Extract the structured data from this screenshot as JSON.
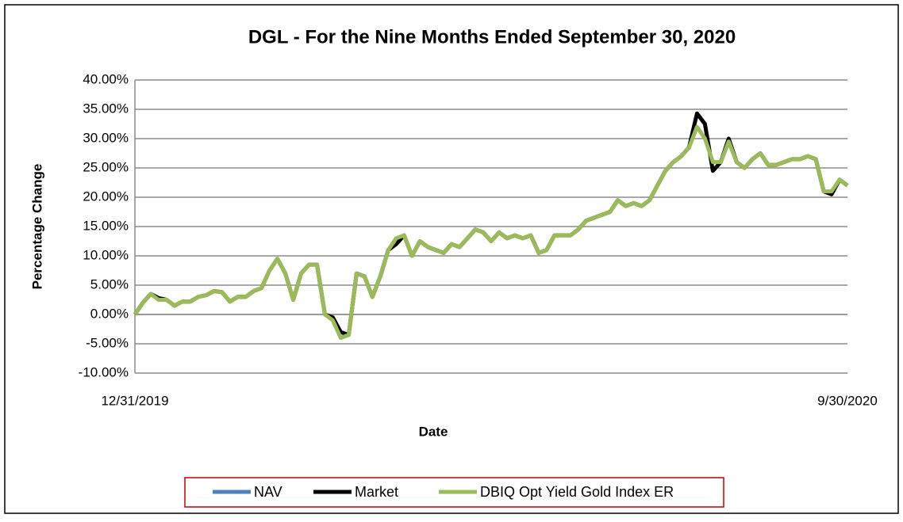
{
  "chart_data": {
    "type": "line",
    "title": "DGL - For the Nine Months Ended September 30, 2020",
    "xlabel": "Date",
    "ylabel": "Percentage Change",
    "categories": [
      "12/31/2019",
      null,
      null,
      null,
      null,
      null,
      null,
      null,
      null,
      null,
      null,
      null,
      null,
      null,
      null,
      null,
      null,
      null,
      null,
      null,
      null,
      null,
      null,
      null,
      null,
      null,
      null,
      null,
      null,
      null,
      null,
      null,
      null,
      null,
      null,
      null,
      null,
      null,
      null,
      null,
      null,
      null,
      null,
      null,
      null,
      null,
      null,
      null,
      null,
      null,
      null,
      null,
      null,
      null,
      null,
      null,
      null,
      null,
      null,
      null,
      null,
      null,
      null,
      null,
      null,
      null,
      null,
      null,
      null,
      null,
      null,
      null,
      null,
      null,
      null,
      null,
      null,
      null,
      null,
      null,
      null,
      null,
      null,
      null,
      null,
      null,
      null,
      null,
      null,
      null,
      "9/30/2020"
    ],
    "series": [
      {
        "name": "NAV",
        "color": "#4f81bd",
        "values": [
          0,
          2,
          3.5,
          2.8,
          2.5,
          1.5,
          2.2,
          2.2,
          3,
          3.3,
          4,
          3.8,
          2.2,
          3,
          3,
          4,
          4.5,
          7.5,
          9.5,
          7,
          2.5,
          7,
          8.5,
          8.5,
          0,
          -0.5,
          -3,
          -3.5,
          7,
          6.5,
          3,
          6.5,
          11,
          13,
          13.5,
          10,
          12.5,
          11.5,
          11,
          10.5,
          12,
          11.5,
          13,
          14.5,
          14,
          12.5,
          14,
          13,
          13.5,
          13,
          13.5,
          10.5,
          11,
          13.5,
          13.5,
          13.5,
          14.5,
          16,
          16.5,
          17,
          17.5,
          19.5,
          18.5,
          19,
          18.5,
          19.5,
          22,
          24.5,
          26,
          27,
          28.5,
          34.3,
          32.5,
          24.5,
          26,
          30,
          26,
          25,
          26.5,
          27.5,
          25.5,
          25.5,
          26,
          26.5,
          26.5,
          27,
          26.5,
          21,
          20.5,
          23,
          22
        ]
      },
      {
        "name": "Market",
        "color": "#000000",
        "values": [
          0,
          2,
          3.5,
          2.8,
          2.5,
          1.5,
          2.2,
          2.2,
          3,
          3.3,
          4,
          3.8,
          2.2,
          3,
          3,
          4,
          4.5,
          7.5,
          9.5,
          7,
          2.5,
          7,
          8.5,
          8.5,
          0,
          -0.5,
          -3,
          -3.5,
          7,
          6.5,
          3,
          6.5,
          11,
          12,
          13.5,
          10,
          12.5,
          11.5,
          11,
          10.5,
          12,
          11.5,
          13,
          14.5,
          14,
          12.5,
          14,
          13,
          13.5,
          13,
          13.5,
          10.5,
          11,
          13.5,
          13.5,
          13.5,
          14.5,
          16,
          16.5,
          17,
          17.5,
          19.5,
          18.5,
          19,
          18.5,
          19.5,
          22,
          24.5,
          26,
          27,
          28.5,
          34.3,
          32.5,
          24.5,
          26,
          30,
          26,
          25,
          26.5,
          27.5,
          25.5,
          25.5,
          26,
          26.5,
          26.5,
          27,
          26.5,
          21,
          20.5,
          23,
          22
        ]
      },
      {
        "name": "DBIQ Opt Yield Gold Index ER",
        "color": "#9bbb59",
        "values": [
          0,
          2,
          3.5,
          2.5,
          2.5,
          1.5,
          2.2,
          2.2,
          3,
          3.3,
          4,
          3.8,
          2.2,
          3,
          3,
          4,
          4.5,
          7.5,
          9.5,
          7,
          2.5,
          7,
          8.5,
          8.5,
          0,
          -1,
          -4,
          -3.5,
          7,
          6.5,
          3,
          6.5,
          11,
          13,
          13.5,
          10,
          12.5,
          11.5,
          11,
          10.5,
          12,
          11.5,
          13,
          14.5,
          14,
          12.5,
          14,
          13,
          13.5,
          13,
          13.5,
          10.5,
          11,
          13.5,
          13.5,
          13.5,
          14.5,
          16,
          16.5,
          17,
          17.5,
          19.5,
          18.5,
          19,
          18.5,
          19.5,
          22,
          24.5,
          26,
          27,
          28.5,
          32,
          30,
          26,
          26,
          29.5,
          26,
          25,
          26.5,
          27.5,
          25.5,
          25.5,
          26,
          26.5,
          26.5,
          27,
          26.5,
          21,
          21,
          23,
          22
        ]
      }
    ],
    "ylim": [
      -10,
      40
    ],
    "yticks": [
      {
        "value": -10,
        "label": "-10.00%"
      },
      {
        "value": -5,
        "label": "-5.00%"
      },
      {
        "value": 0,
        "label": "0.00%"
      },
      {
        "value": 5,
        "label": "5.00%"
      },
      {
        "value": 10,
        "label": "10.00%"
      },
      {
        "value": 15,
        "label": "15.00%"
      },
      {
        "value": 20,
        "label": "20.00%"
      },
      {
        "value": 25,
        "label": "25.00%"
      },
      {
        "value": 30,
        "label": "30.00%"
      },
      {
        "value": 35,
        "label": "35.00%"
      },
      {
        "value": 40,
        "label": "40.00%"
      }
    ],
    "grid": true,
    "legend": "bottom"
  }
}
